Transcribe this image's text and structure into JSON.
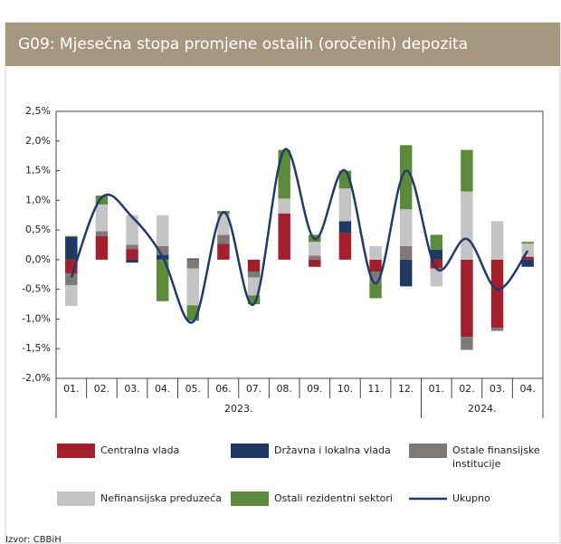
{
  "chart_data": {
    "type": "stacked_bar_line",
    "title": "G09: Mjesečna stopa promjene ostalih (oročenih) depozita",
    "source": "Izvor: CBBiH",
    "categories": [
      "01.",
      "02.",
      "03.",
      "04.",
      "05.",
      "06.",
      "07.",
      "08.",
      "09.",
      "10.",
      "11.",
      "12.",
      "01.",
      "02.",
      "03.",
      "04."
    ],
    "groups": [
      {
        "label": "2023.",
        "size": 12
      },
      {
        "label": "2024.",
        "size": 4
      }
    ],
    "ylim": [
      -2.0,
      2.5
    ],
    "yticks": [
      {
        "value": 2.5,
        "label": "2,5%"
      },
      {
        "value": 2.0,
        "label": "2,0%"
      },
      {
        "value": 1.5,
        "label": "1,5%"
      },
      {
        "value": 1.0,
        "label": "1,0%"
      },
      {
        "value": 0.5,
        "label": "0,5%"
      },
      {
        "value": 0,
        "label": "0,0%"
      },
      {
        "value": -0.5,
        "label": "-0,5%"
      },
      {
        "value": -1.0,
        "label": "-1,0%"
      },
      {
        "value": -1.5,
        "label": "-1,5%"
      },
      {
        "value": -2.0,
        "label": "-2,0%"
      }
    ],
    "grid": false,
    "series": [
      {
        "name": "Centralna vlada",
        "color": "#a31f2c",
        "values": [
          -0.23,
          0.4,
          0.18,
          0,
          0,
          0.27,
          -0.2,
          0.78,
          -0.12,
          0.45,
          -0.2,
          0,
          -0.15,
          -1.3,
          -1.15,
          0.05
        ]
      },
      {
        "name": "Državna i lokalna vlada",
        "color": "#1f3864",
        "values": [
          0.38,
          0,
          -0.05,
          0.08,
          0.02,
          0,
          0,
          0,
          0,
          0.2,
          0,
          -0.45,
          0.17,
          0,
          0,
          -0.12
        ]
      },
      {
        "name": "Ostale finansijske institucije",
        "color": "#7f7a78",
        "values": [
          -0.2,
          0.08,
          0.07,
          0.15,
          -0.15,
          0.15,
          -0.1,
          0,
          0.07,
          0,
          -0.2,
          0.23,
          0,
          -0.22,
          -0.05,
          0
        ]
      },
      {
        "name": "Nefinansijska preduzeća",
        "color": "#c4c4c4",
        "values": [
          -0.35,
          0.45,
          0.5,
          0.52,
          -0.62,
          0.35,
          -0.3,
          0.25,
          0.23,
          0.55,
          0.23,
          0.62,
          -0.3,
          1.15,
          0.65,
          0.22
        ]
      },
      {
        "name": "Ostali rezidentni sektori",
        "color": "#5a8a3a",
        "values": [
          0.02,
          0.15,
          0,
          -0.7,
          -0.26,
          0.05,
          -0.15,
          0.82,
          0.12,
          0.3,
          -0.25,
          1.08,
          0.25,
          0.7,
          0,
          0.03
        ]
      },
      {
        "name": "Ukupno",
        "color": "#1f3a6b",
        "type": "line",
        "values": [
          -0.3,
          1.05,
          0.72,
          0.05,
          -1.05,
          0.8,
          -0.75,
          1.85,
          0.35,
          1.5,
          -0.4,
          1.5,
          -0.15,
          0.35,
          -0.5,
          0.15
        ]
      }
    ]
  }
}
